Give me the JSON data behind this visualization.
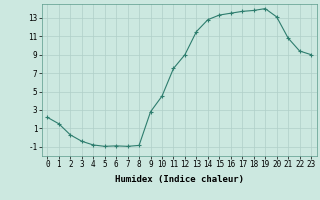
{
  "title": "",
  "xlabel": "Humidex (Indice chaleur)",
  "ylabel": "",
  "x_values": [
    0,
    1,
    2,
    3,
    4,
    5,
    6,
    7,
    8,
    9,
    10,
    11,
    12,
    13,
    14,
    15,
    16,
    17,
    18,
    19,
    20,
    21,
    22,
    23
  ],
  "y_values": [
    2.2,
    1.5,
    0.3,
    -0.4,
    -0.8,
    -0.95,
    -0.9,
    -0.95,
    -0.85,
    2.8,
    4.5,
    7.5,
    9.0,
    11.5,
    12.8,
    13.3,
    13.5,
    13.7,
    13.8,
    14.0,
    13.1,
    10.8,
    9.4,
    9.0
  ],
  "line_color": "#2e7d6e",
  "marker": "+",
  "marker_size": 3,
  "background_color": "#cce8e0",
  "grid_color": "#b0cfc8",
  "axis_bg": "#cce8e0",
  "ylim": [
    -2,
    14.5
  ],
  "yticks": [
    -1,
    1,
    3,
    5,
    7,
    9,
    11,
    13
  ],
  "xlim": [
    -0.5,
    23.5
  ],
  "label_fontsize": 6.5,
  "tick_fontsize": 5.5
}
